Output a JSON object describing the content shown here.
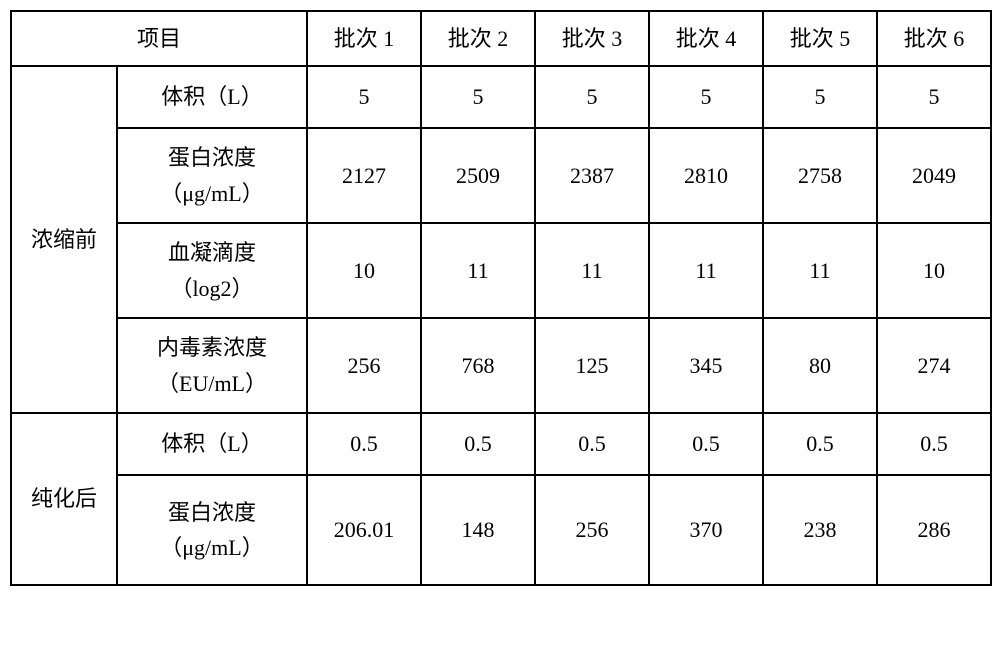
{
  "table": {
    "border_color": "#000000",
    "background_color": "#ffffff",
    "font_family": "SimSun",
    "header": {
      "project_label": "项目",
      "batches": [
        "批次 1",
        "批次 2",
        "批次 3",
        "批次 4",
        "批次 5",
        "批次 6"
      ]
    },
    "groups": [
      {
        "name": "浓缩前",
        "rows": [
          {
            "label_lines": [
              "体积（L）"
            ],
            "values": [
              "5",
              "5",
              "5",
              "5",
              "5",
              "5"
            ],
            "row_style": "row-single"
          },
          {
            "label_lines": [
              "蛋白浓度",
              "（μg/mL）"
            ],
            "values": [
              "2127",
              "2509",
              "2387",
              "2810",
              "2758",
              "2049"
            ],
            "row_style": "row-double"
          },
          {
            "label_lines": [
              "血凝滴度",
              "（log2）"
            ],
            "values": [
              "10",
              "11",
              "11",
              "11",
              "11",
              "10"
            ],
            "row_style": "row-double"
          },
          {
            "label_lines": [
              "内毒素浓度",
              "（EU/mL）"
            ],
            "values": [
              "256",
              "768",
              "125",
              "345",
              "80",
              "274"
            ],
            "row_style": "row-double"
          }
        ]
      },
      {
        "name": "纯化后",
        "rows": [
          {
            "label_lines": [
              "体积（L）"
            ],
            "values": [
              "0.5",
              "0.5",
              "0.5",
              "0.5",
              "0.5",
              "0.5"
            ],
            "row_style": "row-single"
          },
          {
            "label_lines": [
              "蛋白浓度",
              "（μg/mL）"
            ],
            "values": [
              "206.01",
              "148",
              "256",
              "370",
              "238",
              "286"
            ],
            "row_style": "row-double-tall"
          }
        ]
      }
    ]
  }
}
